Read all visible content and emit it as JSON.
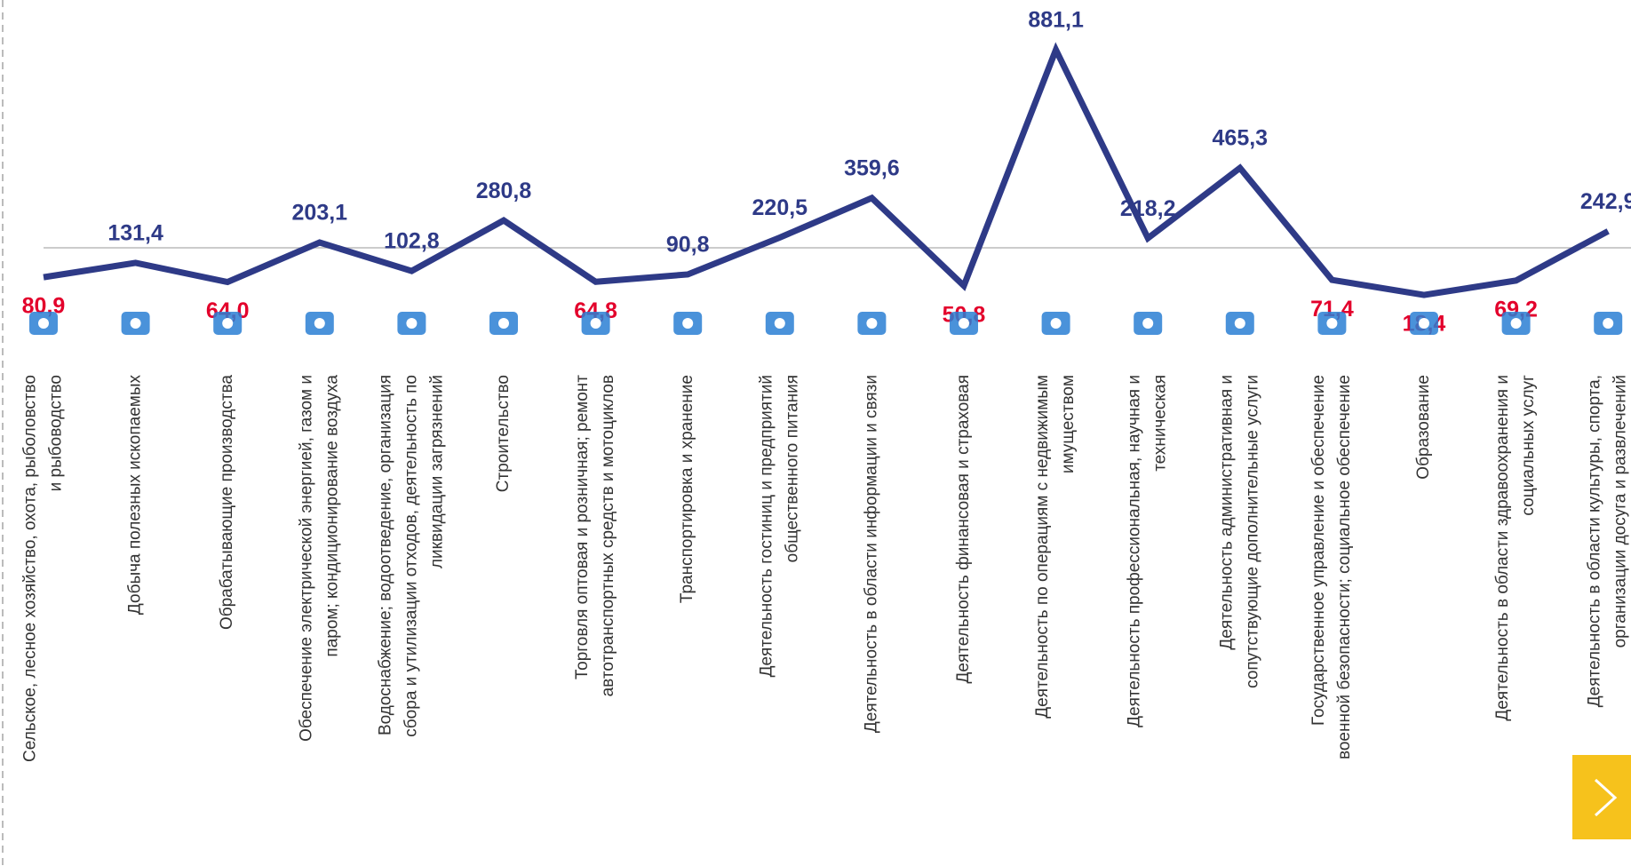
{
  "chart_data": {
    "type": "line",
    "categories": [
      [
        "Сельское, лесное хозяйство, охота, рыболовство",
        "и рыбоводство"
      ],
      [
        "Добыча полезных ископаемых"
      ],
      [
        "Обрабатывающие производства"
      ],
      [
        "Обеспечение электрической энергией, газом и",
        "паром; кондиционирование воздуха"
      ],
      [
        "Водоснабжение; водоотведение, организация",
        "сбора и утилизации отходов, деятельность по",
        "ликвидации загрязнений"
      ],
      [
        "Строительство"
      ],
      [
        "Торговля оптовая и розничная; ремонт",
        "автотранспортных средств и мотоциклов"
      ],
      [
        "Транспортировка и хранение"
      ],
      [
        "Деятельность гостиниц и предприятий",
        "общественного питания"
      ],
      [
        "Деятельность в области информации и связи"
      ],
      [
        "Деятельность финансовая и страховая"
      ],
      [
        "Деятельность по операциям с недвижимым",
        "имуществом"
      ],
      [
        "Деятельность профессиональная, научная и",
        "техническая"
      ],
      [
        "Деятельность административная и",
        "сопутствующие дополнительные услуги"
      ],
      [
        "Государственное управление и обеспечение",
        "военной безопасности; социальное обеспечение"
      ],
      [
        "Образование"
      ],
      [
        "Деятельность в области здравоохранения и",
        "социальных услуг"
      ],
      [
        "Деятельность в области культуры, спорта,",
        "организации досуга и развлечений"
      ]
    ],
    "values": [
      80.9,
      131.4,
      64.0,
      203.1,
      102.8,
      280.8,
      64.8,
      90.8,
      220.5,
      359.6,
      50.8,
      881.1,
      218.2,
      465.3,
      71.4,
      18.4,
      69.2,
      242.9
    ],
    "value_labels": [
      "80,9",
      "131,4",
      "64,0",
      "203,1",
      "102,8",
      "280,8",
      "64,8",
      "90,8",
      "220,5",
      "359,6",
      "50,8",
      "881,1",
      "218,2",
      "465,3",
      "71,4",
      "18,4",
      "69,2",
      "242,9"
    ],
    "color": "#2e3a87",
    "label_colors": [
      "#e3002b",
      "#2e3a87",
      "#e3002b",
      "#2e3a87",
      "#2e3a87",
      "#2e3a87",
      "#e3002b",
      "#2e3a87",
      "#2e3a87",
      "#2e3a87",
      "#e3002b",
      "#2e3a87",
      "#2e3a87",
      "#2e3a87",
      "#e3002b",
      "#e3002b",
      "#e3002b",
      "#2e3a87"
    ]
  }
}
